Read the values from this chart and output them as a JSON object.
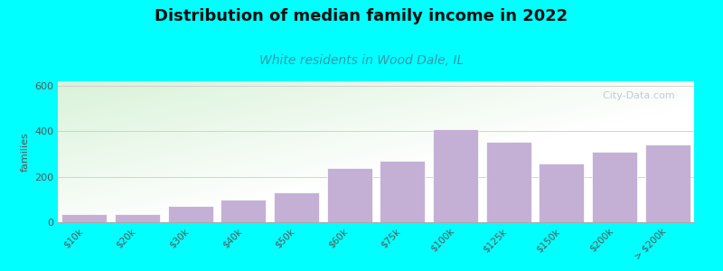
{
  "title": "Distribution of median family income in 2022",
  "subtitle": "White residents in Wood Dale, IL",
  "categories": [
    "$10k",
    "$20k",
    "$30k",
    "$40k",
    "$50k",
    "$60k",
    "$75k",
    "$100k",
    "$125k",
    "$150k",
    "$200k",
    "> $200k"
  ],
  "values": [
    35,
    35,
    70,
    100,
    130,
    240,
    270,
    410,
    355,
    260,
    310,
    340
  ],
  "bar_color": "#c4b0d5",
  "bar_edge_color": "#ffffff",
  "background_outer": "#00ffff",
  "ylabel": "families",
  "ylim": [
    0,
    620
  ],
  "yticks": [
    0,
    200,
    400,
    600
  ],
  "title_fontsize": 13,
  "subtitle_fontsize": 10,
  "subtitle_color": "#3399aa",
  "ylabel_fontsize": 8,
  "watermark": "  City-Data.com"
}
